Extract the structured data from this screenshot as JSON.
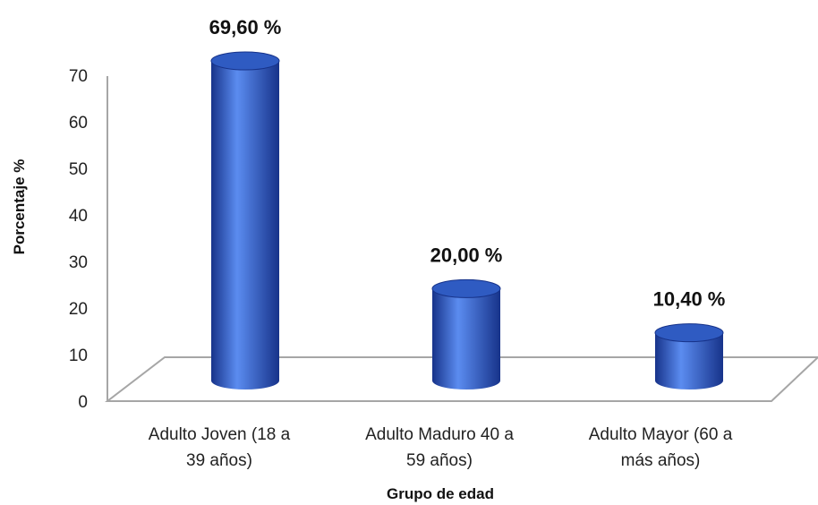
{
  "chart_data": {
    "type": "bar",
    "style": "3d-cylinder",
    "categories": [
      [
        "Adulto Joven (18 a",
        "39 años)"
      ],
      [
        "Adulto Maduro 40 a",
        "59 años)"
      ],
      [
        "Adulto Mayor (60 a",
        "más años)"
      ]
    ],
    "values": [
      69.6,
      20.0,
      10.4
    ],
    "data_labels": [
      "69,60 %",
      "20,00 %",
      "10,40 %"
    ],
    "xlabel": "Grupo de edad",
    "ylabel": "Porcentaje %",
    "ylim": [
      0,
      70
    ],
    "yticks": [
      "0",
      "10",
      "20",
      "30",
      "40",
      "50",
      "60",
      "70"
    ],
    "grid": false,
    "legend": "none",
    "bar_color": "#2f5bc2",
    "bar_highlight": "#5b8cf0",
    "bar_shadow": "#17338a"
  }
}
